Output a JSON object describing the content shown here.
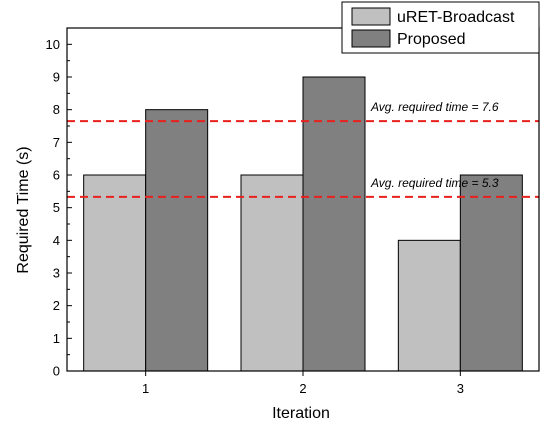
{
  "chart_data": {
    "type": "bar",
    "xlabel": "Iteration",
    "ylabel": "Required Time (s)",
    "categories": [
      "1",
      "2",
      "3"
    ],
    "ylim": [
      0,
      10.5
    ],
    "yticks": [
      "0",
      "1",
      "2",
      "3",
      "4",
      "5",
      "6",
      "7",
      "8",
      "9",
      "10"
    ],
    "series": [
      {
        "name": "uRET-Broadcast",
        "color": "#c0c0c0",
        "values": [
          6,
          6,
          4
        ]
      },
      {
        "name": "Proposed",
        "color": "#808080",
        "values": [
          8,
          9,
          6
        ]
      }
    ],
    "reference_lines": [
      {
        "value": 7.65,
        "label": "Avg. required time = 7.6",
        "color": "#e8211d"
      },
      {
        "value": 5.33,
        "label": "Avg. required time = 5.3",
        "color": "#e8211d"
      }
    ],
    "legend_position": "top-right",
    "grid": false
  }
}
